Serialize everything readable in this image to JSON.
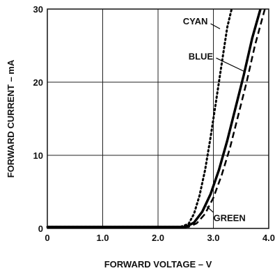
{
  "chart_data": {
    "type": "line",
    "xlabel": "FORWARD VOLTAGE – V",
    "ylabel": "FORWARD CURRENT – mA",
    "xlim": [
      0,
      4.0
    ],
    "ylim": [
      0,
      30
    ],
    "grid": true,
    "x_ticks": [
      "0",
      "1.0",
      "2.0",
      "3.0",
      "4.0"
    ],
    "y_ticks": [
      "0",
      "10",
      "20",
      "30"
    ],
    "series": [
      {
        "name": "CYAN",
        "style": "dotted",
        "x": [
          0.0,
          2.4,
          2.55,
          2.65,
          2.75,
          2.85,
          2.95,
          3.05,
          3.15,
          3.25,
          3.33
        ],
        "y": [
          0.2,
          0.2,
          0.6,
          2.0,
          4.5,
          8.0,
          12.5,
          17.5,
          22.5,
          27.5,
          30.0
        ]
      },
      {
        "name": "BLUE",
        "style": "solid",
        "x": [
          0.0,
          2.5,
          2.65,
          2.8,
          2.95,
          3.1,
          3.25,
          3.4,
          3.55,
          3.7,
          3.85
        ],
        "y": [
          0.2,
          0.2,
          0.8,
          2.3,
          4.7,
          8.0,
          12.0,
          16.5,
          21.0,
          26.0,
          30.0
        ]
      },
      {
        "name": "GREEN",
        "style": "dashed",
        "x": [
          0.0,
          2.55,
          2.7,
          2.85,
          3.0,
          3.15,
          3.3,
          3.45,
          3.6,
          3.75,
          3.93
        ],
        "y": [
          0.2,
          0.2,
          0.7,
          2.0,
          4.2,
          7.3,
          11.0,
          15.5,
          20.0,
          25.0,
          30.0
        ]
      }
    ]
  }
}
